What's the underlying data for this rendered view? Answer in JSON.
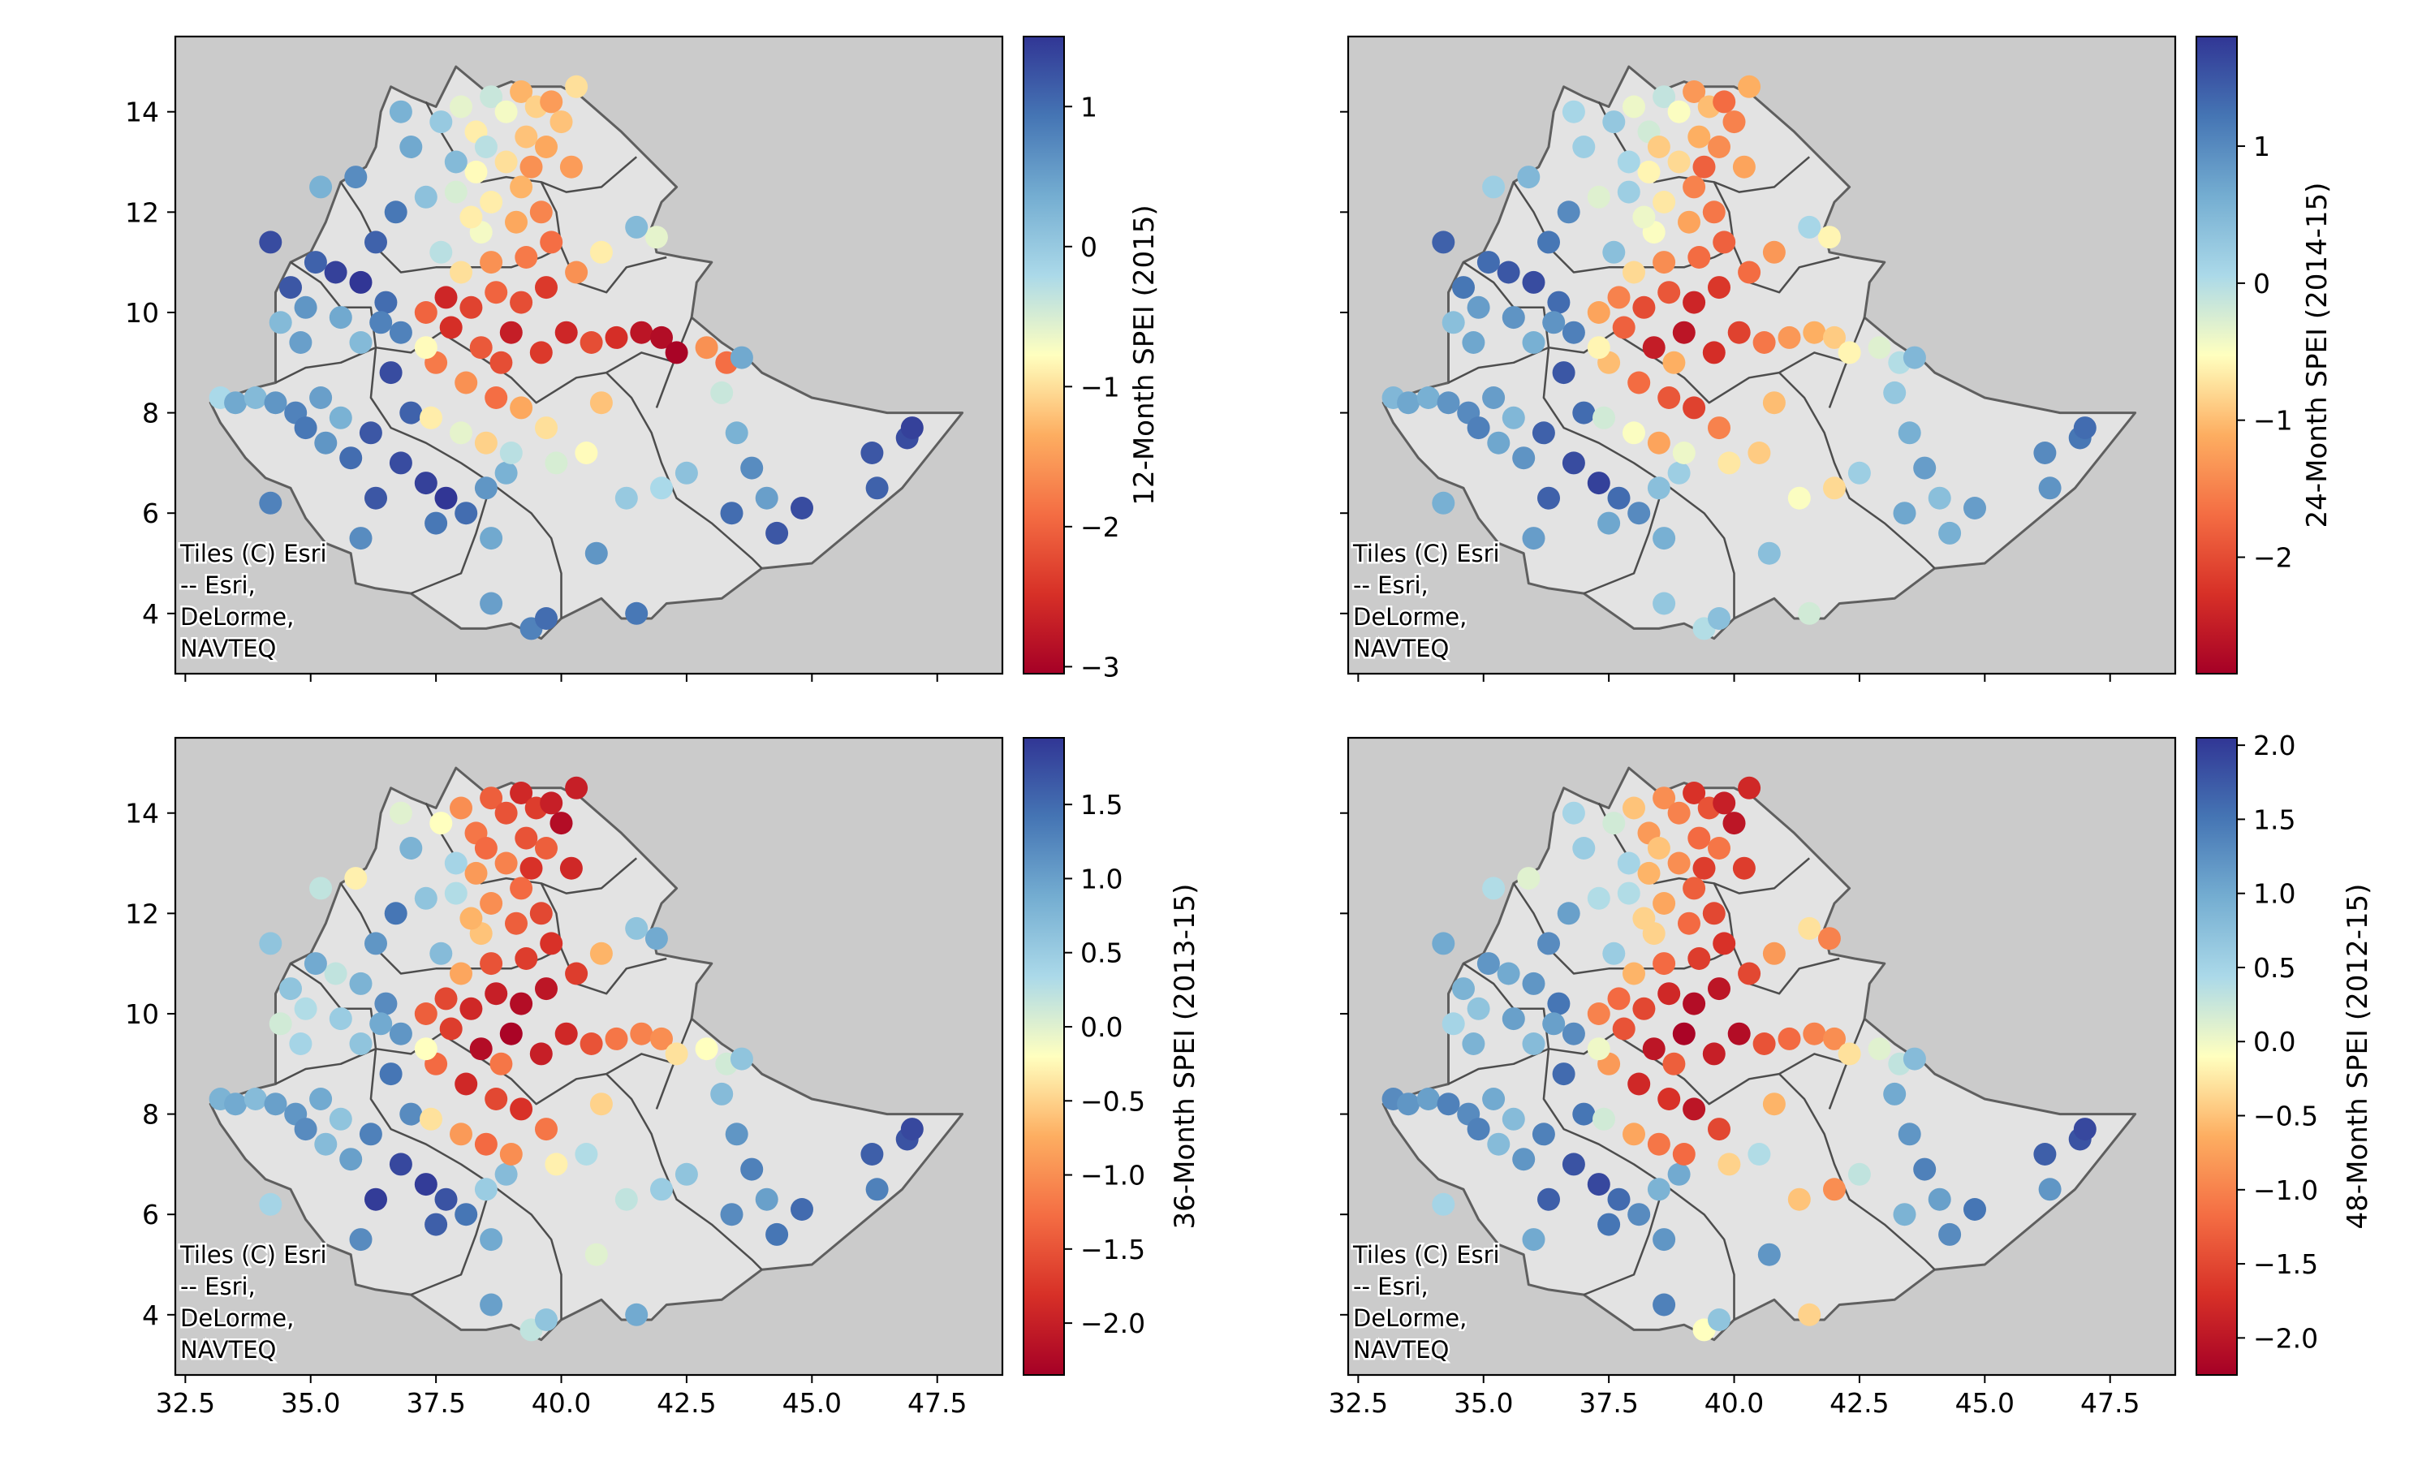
{
  "chart_data": [
    {
      "type": "scatter",
      "panel": "top-left",
      "colorbar_label": "12-Month SPEI (2015)",
      "colorbar_range": [
        -3.05,
        1.5
      ],
      "colorbar_ticks": [
        -3,
        -2,
        -1,
        0,
        1
      ],
      "colormap": "RdYlBu",
      "xlim": [
        32.3,
        48.8
      ],
      "ylim": [
        2.8,
        15.5
      ],
      "xticks": [
        32.5,
        35.0,
        37.5,
        40.0,
        42.5,
        45.0,
        47.5
      ],
      "yticks": [
        4,
        6,
        8,
        10,
        12,
        14
      ],
      "show_xticklabels": false,
      "show_yticklabels": true,
      "attribution": [
        "Tiles (C) Esri",
        "-- Esri,",
        "DeLorme,",
        "NAVTEQ"
      ]
    },
    {
      "type": "scatter",
      "panel": "top-right",
      "colorbar_label": "24-Month SPEI (2014-15)",
      "colorbar_range": [
        -2.85,
        1.8
      ],
      "colorbar_ticks": [
        -2,
        -1,
        0,
        1
      ],
      "colormap": "RdYlBu",
      "xlim": [
        32.3,
        48.8
      ],
      "ylim": [
        2.8,
        15.5
      ],
      "xticks": [
        32.5,
        35.0,
        37.5,
        40.0,
        42.5,
        45.0,
        47.5
      ],
      "yticks": [
        4,
        6,
        8,
        10,
        12,
        14
      ],
      "show_xticklabels": false,
      "show_yticklabels": false,
      "attribution": [
        "Tiles (C) Esri",
        "-- Esri,",
        "DeLorme,",
        "NAVTEQ"
      ]
    },
    {
      "type": "scatter",
      "panel": "bottom-left",
      "colorbar_label": "36-Month SPEI (2013-15)",
      "colorbar_range": [
        -2.35,
        1.95
      ],
      "colorbar_ticks": [
        -2.0,
        -1.5,
        -1.0,
        -0.5,
        0.0,
        0.5,
        1.0,
        1.5
      ],
      "colormap": "RdYlBu",
      "xlim": [
        32.3,
        48.8
      ],
      "ylim": [
        2.8,
        15.5
      ],
      "xticks": [
        32.5,
        35.0,
        37.5,
        40.0,
        42.5,
        45.0,
        47.5
      ],
      "yticks": [
        4,
        6,
        8,
        10,
        12,
        14
      ],
      "show_xticklabels": true,
      "show_yticklabels": true,
      "attribution": [
        "Tiles (C) Esri",
        "-- Esri,",
        "DeLorme,",
        "NAVTEQ"
      ]
    },
    {
      "type": "scatter",
      "panel": "bottom-right",
      "colorbar_label": "48-Month SPEI (2012-15)",
      "colorbar_range": [
        -2.25,
        2.05
      ],
      "colorbar_ticks": [
        -2.0,
        -1.5,
        -1.0,
        -0.5,
        0.0,
        0.5,
        1.0,
        1.5,
        2.0
      ],
      "colormap": "RdYlBu",
      "xlim": [
        32.3,
        48.8
      ],
      "ylim": [
        2.8,
        15.5
      ],
      "xticks": [
        32.5,
        35.0,
        37.5,
        40.0,
        42.5,
        45.0,
        47.5
      ],
      "yticks": [
        4,
        6,
        8,
        10,
        12,
        14
      ],
      "show_xticklabels": true,
      "show_yticklabels": false,
      "attribution": [
        "Tiles (C) Esri",
        "-- Esri,",
        "DeLorme,",
        "NAVTEQ"
      ]
    }
  ],
  "stations": [
    [
      33.2,
      8.3,
      -0.2,
      0.5,
      0.8,
      1.3
    ],
    [
      33.5,
      8.2,
      0.4,
      0.7,
      0.9,
      1.2
    ],
    [
      33.9,
      8.3,
      0.2,
      0.6,
      0.7,
      1.1
    ],
    [
      34.3,
      8.2,
      0.6,
      0.9,
      1.0,
      1.4
    ],
    [
      34.7,
      8.0,
      0.8,
      1.0,
      1.1,
      1.3
    ],
    [
      35.2,
      8.3,
      0.5,
      0.8,
      0.9,
      1.0
    ],
    [
      35.6,
      7.9,
      0.3,
      0.5,
      0.6,
      0.8
    ],
    [
      34.9,
      7.7,
      0.9,
      1.1,
      1.2,
      1.4
    ],
    [
      35.3,
      7.4,
      0.6,
      0.7,
      0.7,
      0.8
    ],
    [
      35.8,
      7.1,
      1.0,
      0.9,
      1.0,
      1.2
    ],
    [
      34.2,
      6.2,
      0.8,
      0.6,
      0.4,
      0.5
    ],
    [
      34.6,
      10.5,
      1.2,
      1.2,
      0.6,
      0.9
    ],
    [
      34.9,
      10.1,
      0.6,
      0.8,
      0.3,
      0.7
    ],
    [
      34.4,
      9.8,
      0.2,
      0.4,
      0.1,
      0.5
    ],
    [
      34.8,
      9.4,
      0.5,
      0.7,
      0.4,
      0.9
    ],
    [
      34.2,
      11.4,
      1.3,
      1.4,
      0.6,
      1.0
    ],
    [
      35.2,
      12.5,
      0.3,
      0.2,
      0.2,
      0.4
    ],
    [
      35.9,
      12.7,
      0.7,
      0.5,
      -0.3,
      0.1
    ],
    [
      36.3,
      11.4,
      1.1,
      1.2,
      1.1,
      1.3
    ],
    [
      36.0,
      10.6,
      1.5,
      1.6,
      0.8,
      1.2
    ],
    [
      36.5,
      10.2,
      1.0,
      1.3,
      1.2,
      1.5
    ],
    [
      35.6,
      9.9,
      0.4,
      0.9,
      0.5,
      1.1
    ],
    [
      36.0,
      9.4,
      0.2,
      0.6,
      0.6,
      0.8
    ],
    [
      36.8,
      9.6,
      0.8,
      1.1,
      1.1,
      1.3
    ],
    [
      36.6,
      8.8,
      1.3,
      1.5,
      1.4,
      1.6
    ],
    [
      37.0,
      8.0,
      1.1,
      1.3,
      1.2,
      1.5
    ],
    [
      36.2,
      7.6,
      1.2,
      1.4,
      1.3,
      1.4
    ],
    [
      36.8,
      7.0,
      1.3,
      1.6,
      1.8,
      1.8
    ],
    [
      37.3,
      6.6,
      1.4,
      1.7,
      1.9,
      1.9
    ],
    [
      37.7,
      6.3,
      1.5,
      1.3,
      1.7,
      1.6
    ],
    [
      38.1,
      6.0,
      1.0,
      1.0,
      1.4,
      1.3
    ],
    [
      37.5,
      5.8,
      0.9,
      0.7,
      1.6,
      1.5
    ],
    [
      38.5,
      6.5,
      0.6,
      0.4,
      0.5,
      0.9
    ],
    [
      38.9,
      6.8,
      0.3,
      0.2,
      0.7,
      1.0
    ],
    [
      38.6,
      5.5,
      0.4,
      0.6,
      0.9,
      1.2
    ],
    [
      36.3,
      6.3,
      1.2,
      1.4,
      1.9,
      1.7
    ],
    [
      36.0,
      5.5,
      0.7,
      0.8,
      1.2,
      1.0
    ],
    [
      38.6,
      4.2,
      0.5,
      0.3,
      1.0,
      1.4
    ],
    [
      39.4,
      3.7,
      0.8,
      0.0,
      0.2,
      -0.1
    ],
    [
      39.7,
      3.9,
      1.0,
      0.4,
      0.6,
      0.7
    ],
    [
      36.7,
      12.0,
      0.9,
      1.0,
      1.4,
      1.1
    ],
    [
      37.3,
      12.3,
      0.1,
      -0.3,
      0.6,
      0.4
    ],
    [
      37.0,
      13.3,
      0.4,
      0.2,
      0.8,
      0.6
    ],
    [
      37.6,
      13.8,
      0.0,
      0.3,
      -0.2,
      0.2
    ],
    [
      36.8,
      14.0,
      0.3,
      0.1,
      0.0,
      0.5
    ],
    [
      38.0,
      14.1,
      -0.6,
      -0.4,
      -1.0,
      -0.5
    ],
    [
      38.3,
      13.6,
      -0.9,
      -0.2,
      -1.2,
      -0.8
    ],
    [
      38.6,
      14.3,
      -0.4,
      -0.1,
      -1.4,
      -0.9
    ],
    [
      38.9,
      14.0,
      -0.7,
      -0.5,
      -1.5,
      -1.0
    ],
    [
      39.2,
      14.4,
      -1.3,
      -1.3,
      -1.9,
      -1.7
    ],
    [
      39.5,
      14.1,
      -1.1,
      -1.0,
      -1.7,
      -1.4
    ],
    [
      39.8,
      14.2,
      -1.5,
      -1.7,
      -2.0,
      -1.9
    ],
    [
      39.3,
      13.5,
      -1.2,
      -1.1,
      -1.5,
      -1.2
    ],
    [
      39.7,
      13.3,
      -1.4,
      -1.4,
      -1.4,
      -1.1
    ],
    [
      38.9,
      13.0,
      -1.0,
      -0.8,
      -1.1,
      -0.9
    ],
    [
      38.3,
      12.8,
      -0.8,
      -0.6,
      -0.9,
      -0.6
    ],
    [
      37.9,
      12.4,
      -0.5,
      0.2,
      0.3,
      0.4
    ],
    [
      38.6,
      12.2,
      -0.9,
      -0.7,
      -1.0,
      -0.7
    ],
    [
      39.2,
      12.5,
      -1.3,
      -1.5,
      -1.3,
      -1.3
    ],
    [
      39.6,
      12.0,
      -1.7,
      -1.6,
      -1.6,
      -1.5
    ],
    [
      39.1,
      11.8,
      -1.4,
      -1.2,
      -1.4,
      -1.2
    ],
    [
      38.4,
      11.6,
      -0.7,
      -0.5,
      -0.6,
      -0.4
    ],
    [
      37.6,
      11.2,
      -0.3,
      0.4,
      0.7,
      0.6
    ],
    [
      38.0,
      10.8,
      -1.0,
      -0.8,
      -0.8,
      -0.6
    ],
    [
      38.6,
      11.0,
      -1.6,
      -1.4,
      -1.5,
      -1.2
    ],
    [
      39.3,
      11.1,
      -1.8,
      -1.7,
      -1.7,
      -1.6
    ],
    [
      39.8,
      11.4,
      -1.9,
      -1.8,
      -1.8,
      -1.7
    ],
    [
      39.7,
      10.5,
      -2.4,
      -2.2,
      -2.1,
      -2.0
    ],
    [
      39.2,
      10.2,
      -2.2,
      -2.4,
      -2.2,
      -2.1
    ],
    [
      38.7,
      10.4,
      -2.0,
      -1.9,
      -2.0,
      -1.8
    ],
    [
      38.2,
      10.1,
      -2.3,
      -2.0,
      -1.9,
      -1.5
    ],
    [
      37.7,
      10.3,
      -2.6,
      -1.5,
      -1.6,
      -1.2
    ],
    [
      37.3,
      10.0,
      -2.0,
      -1.2,
      -1.4,
      -1.0
    ],
    [
      37.8,
      9.7,
      -2.5,
      -1.8,
      -1.7,
      -1.4
    ],
    [
      38.4,
      9.3,
      -2.1,
      -2.5,
      -2.2,
      -2.0
    ],
    [
      39.0,
      9.6,
      -2.7,
      -2.6,
      -2.3,
      -2.2
    ],
    [
      39.6,
      9.2,
      -2.4,
      -2.3,
      -2.0,
      -1.9
    ],
    [
      40.1,
      9.6,
      -2.6,
      -2.1,
      -1.9,
      -2.1
    ],
    [
      40.6,
      9.4,
      -2.2,
      -1.6,
      -1.5,
      -1.4
    ],
    [
      41.1,
      9.5,
      -2.5,
      -1.3,
      -1.2,
      -1.2
    ],
    [
      41.6,
      9.6,
      -2.8,
      -1.1,
      -1.1,
      -1.0
    ],
    [
      42.0,
      9.5,
      -2.9,
      -0.9,
      -1.0,
      -0.9
    ],
    [
      42.3,
      9.2,
      -3.0,
      -0.6,
      -0.4,
      -0.3
    ],
    [
      42.9,
      9.3,
      -1.6,
      -0.3,
      -0.2,
      0.1
    ],
    [
      43.3,
      9.0,
      -1.9,
      0.0,
      0.1,
      0.3
    ],
    [
      43.6,
      9.1,
      0.4,
      0.5,
      0.6,
      0.8
    ],
    [
      43.2,
      8.4,
      -0.4,
      0.3,
      0.7,
      1.0
    ],
    [
      43.5,
      7.6,
      0.3,
      0.6,
      1.1,
      1.2
    ],
    [
      43.8,
      6.9,
      0.7,
      0.8,
      1.3,
      1.4
    ],
    [
      44.1,
      6.3,
      0.5,
      0.4,
      1.0,
      1.1
    ],
    [
      37.5,
      9.0,
      -1.8,
      -1.0,
      -1.3,
      -0.8
    ],
    [
      38.1,
      8.6,
      -1.6,
      -1.7,
      -1.9,
      -1.8
    ],
    [
      38.7,
      8.3,
      -1.9,
      -1.9,
      -1.6,
      -1.7
    ],
    [
      39.2,
      8.1,
      -1.4,
      -2.1,
      -1.8,
      -2.0
    ],
    [
      39.7,
      7.7,
      -1.0,
      -1.5,
      -1.2,
      -1.5
    ],
    [
      38.0,
      7.6,
      -0.6,
      -0.5,
      -0.9,
      -0.7
    ],
    [
      38.5,
      7.4,
      -1.1,
      -1.2,
      -1.3,
      -1.1
    ],
    [
      39.0,
      7.2,
      -0.3,
      -0.4,
      -1.0,
      -1.2
    ],
    [
      37.4,
      7.9,
      -0.9,
      -0.2,
      -0.4,
      0.2
    ],
    [
      39.9,
      7.0,
      -0.5,
      -0.7,
      -0.3,
      -0.4
    ],
    [
      40.5,
      7.2,
      -0.8,
      -0.9,
      0.3,
      0.4
    ],
    [
      40.8,
      8.2,
      -1.2,
      -1.0,
      -0.5,
      -0.6
    ],
    [
      41.3,
      6.3,
      0.0,
      -0.5,
      0.2,
      -0.5
    ],
    [
      42.0,
      6.5,
      -0.2,
      -0.8,
      0.5,
      -0.9
    ],
    [
      42.5,
      6.8,
      0.1,
      0.2,
      0.6,
      0.3
    ],
    [
      43.4,
      6.0,
      1.0,
      0.7,
      1.2,
      0.9
    ],
    [
      44.3,
      5.6,
      1.2,
      0.6,
      1.4,
      1.3
    ],
    [
      44.8,
      6.1,
      1.3,
      0.8,
      1.5,
      1.5
    ],
    [
      46.2,
      7.2,
      1.2,
      1.0,
      1.6,
      1.7
    ],
    [
      46.3,
      6.5,
      1.1,
      0.9,
      1.3,
      1.2
    ],
    [
      46.9,
      7.5,
      1.3,
      1.2,
      1.7,
      1.8
    ],
    [
      47.0,
      7.7,
      1.4,
      1.3,
      1.8,
      1.9
    ],
    [
      40.7,
      5.2,
      0.6,
      0.4,
      0.0,
      1.2
    ],
    [
      41.5,
      4.0,
      0.9,
      -0.2,
      0.9,
      -0.4
    ],
    [
      41.9,
      11.5,
      -0.6,
      -0.6,
      0.9,
      -1.0
    ],
    [
      41.5,
      11.7,
      0.2,
      0.1,
      0.6,
      -0.3
    ],
    [
      40.8,
      11.2,
      -0.9,
      -1.3,
      -0.7,
      -0.8
    ],
    [
      40.3,
      10.8,
      -1.6,
      -1.7,
      -1.7,
      -1.5
    ],
    [
      39.4,
      12.9,
      -1.6,
      -1.8,
      -1.8,
      -1.6
    ],
    [
      38.5,
      13.3,
      -0.3,
      -0.9,
      -1.3,
      -0.5
    ],
    [
      37.9,
      13.0,
      0.2,
      0.1,
      0.4,
      0.5
    ],
    [
      37.3,
      9.3,
      -0.8,
      -0.6,
      -0.2,
      0.0
    ],
    [
      36.4,
      9.8,
      0.8,
      0.9,
      0.9,
      1.1
    ],
    [
      35.5,
      10.8,
      1.4,
      1.5,
      0.2,
      1.0
    ],
    [
      35.1,
      11.0,
      1.1,
      1.3,
      0.9,
      1.2
    ],
    [
      40.2,
      12.9,
      -1.5,
      -1.2,
      -1.9,
      -1.6
    ],
    [
      40.0,
      13.8,
      -1.2,
      -1.5,
      -2.2,
      -2.0
    ],
    [
      40.3,
      14.5,
      -1.0,
      -1.1,
      -2.0,
      -1.8
    ],
    [
      38.2,
      11.9,
      -0.9,
      -0.4,
      -0.7,
      -0.4
    ],
    [
      38.8,
      9.0,
      -2.2,
      -1.1,
      -1.2,
      -1.3
    ]
  ]
}
